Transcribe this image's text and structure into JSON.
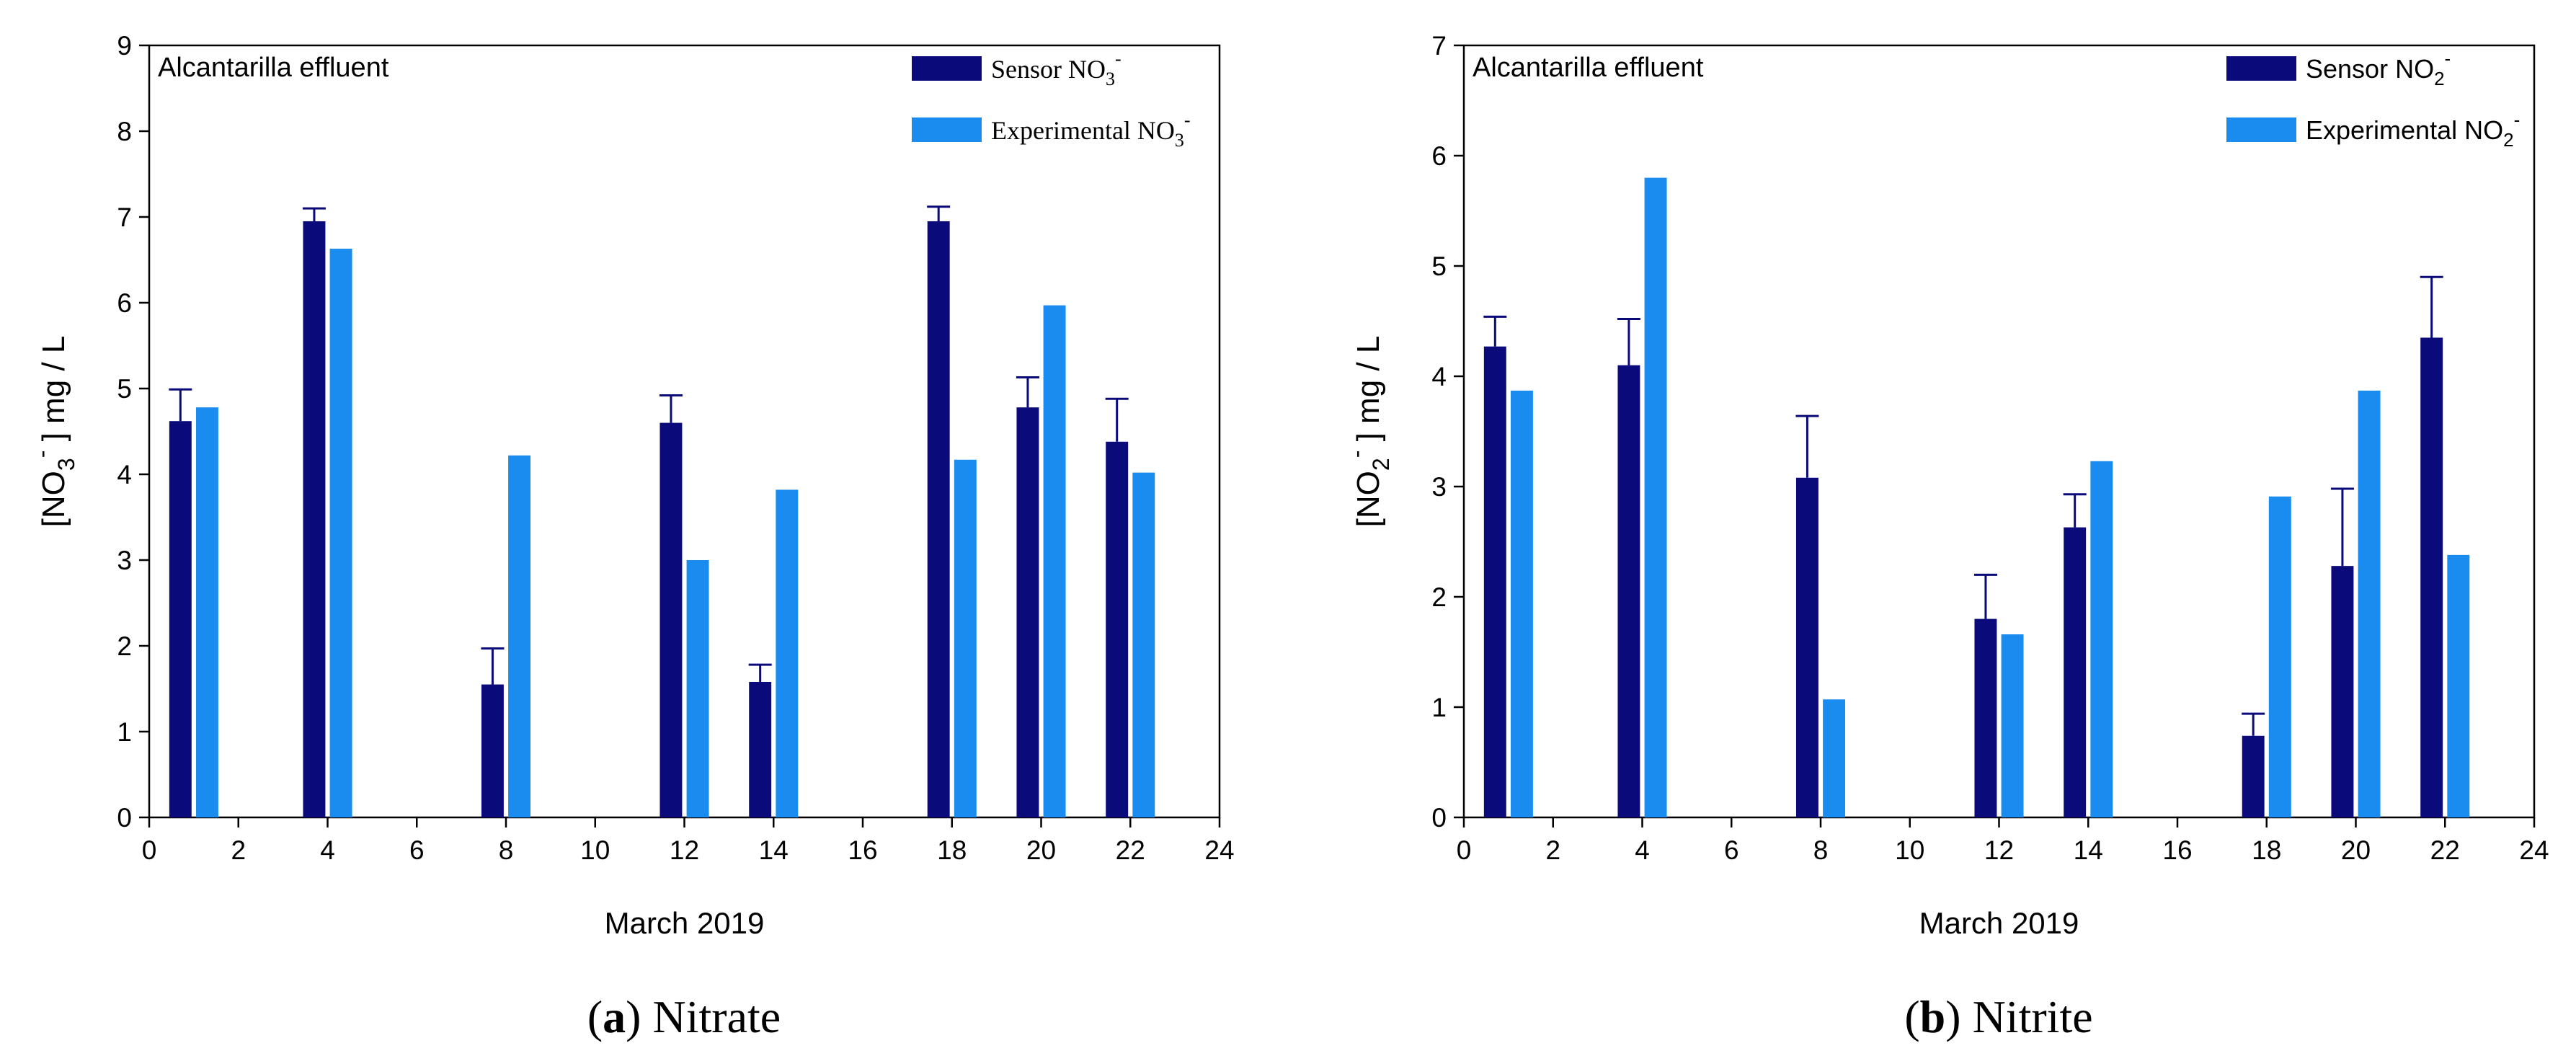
{
  "colors": {
    "sensor": "#0a0a7a",
    "experimental": "#1a8cf0",
    "axis": "#000000"
  },
  "chart_data": [
    {
      "type": "bar",
      "caption_letter": "(a)",
      "caption_text": "Nitrate",
      "annotation": "Alcantarilla effluent",
      "xlabel": "March 2019",
      "ylabel_main": "[NO",
      "ylabel_sub": "3",
      "ylabel_sup": "-",
      "ylabel_tail": "] mg / L",
      "xlim": [
        0,
        24
      ],
      "ylim": [
        0,
        9
      ],
      "xticks": [
        "0",
        "2",
        "4",
        "6",
        "8",
        "10",
        "12",
        "14",
        "16",
        "18",
        "20",
        "22",
        "24"
      ],
      "yticks": [
        "0",
        "1",
        "2",
        "3",
        "4",
        "5",
        "6",
        "7",
        "8",
        "9"
      ],
      "x": [
        1,
        4,
        8,
        12,
        14,
        18,
        20,
        22
      ],
      "series": [
        {
          "name": "Sensor",
          "legend_main": "Sensor NO",
          "legend_sub": "3",
          "legend_sup": "-",
          "offset": -0.3,
          "values": [
            4.62,
            6.95,
            1.55,
            4.6,
            1.58,
            6.95,
            4.78,
            4.38
          ],
          "error": [
            0.37,
            0.15,
            0.42,
            0.32,
            0.2,
            0.17,
            0.35,
            0.5
          ]
        },
        {
          "name": "Experimental",
          "legend_main": "Experimental NO",
          "legend_sub": "3",
          "legend_sup": "-",
          "offset": 0.3,
          "values": [
            4.78,
            6.63,
            4.22,
            3.0,
            3.82,
            4.17,
            5.97,
            4.02
          ]
        }
      ]
    },
    {
      "type": "bar",
      "caption_letter": "(b)",
      "caption_text": "Nitrite",
      "annotation": "Alcantarilla effluent",
      "xlabel": "March 2019",
      "ylabel_main": "[NO",
      "ylabel_sub": "2",
      "ylabel_sup": "-",
      "ylabel_tail": "] mg / L",
      "xlim": [
        0,
        24
      ],
      "ylim": [
        0,
        7
      ],
      "xticks": [
        "0",
        "2",
        "4",
        "6",
        "8",
        "10",
        "12",
        "14",
        "16",
        "18",
        "20",
        "22",
        "24"
      ],
      "yticks": [
        "0",
        "1",
        "2",
        "3",
        "4",
        "5",
        "6",
        "7"
      ],
      "x": [
        1,
        4,
        8,
        12,
        14,
        18,
        20,
        22
      ],
      "series": [
        {
          "name": "Sensor",
          "legend_main": "Sensor NO",
          "legend_sub": "2",
          "legend_sup": "-",
          "offset": -0.3,
          "values": [
            4.27,
            4.1,
            3.08,
            1.8,
            2.63,
            0.74,
            2.28,
            4.35
          ],
          "error": [
            0.27,
            0.42,
            0.56,
            0.4,
            0.3,
            0.2,
            0.7,
            0.55
          ]
        },
        {
          "name": "Experimental",
          "legend_main": "Experimental NO",
          "legend_sub": "2",
          "legend_sup": "-",
          "offset": 0.3,
          "values": [
            3.87,
            5.8,
            1.07,
            1.66,
            3.23,
            2.91,
            3.87,
            2.38
          ]
        }
      ]
    }
  ]
}
